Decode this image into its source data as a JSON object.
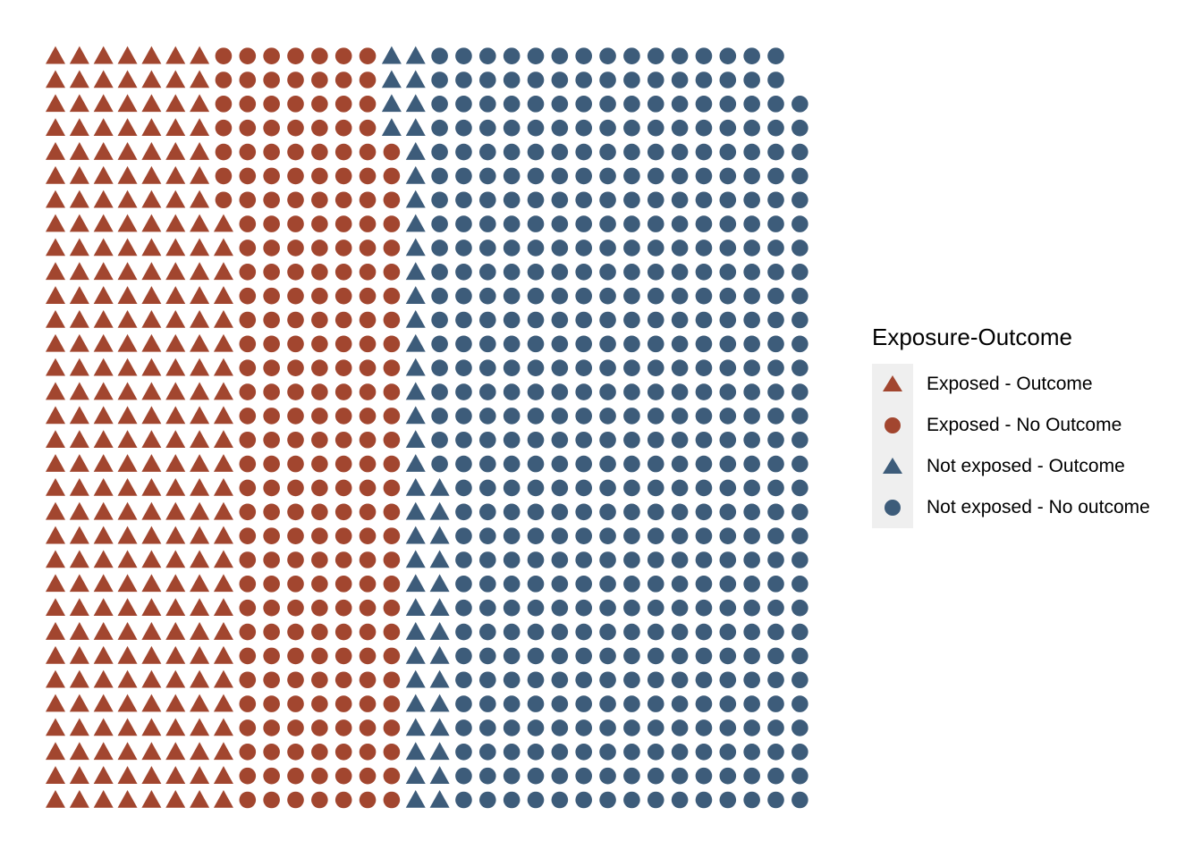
{
  "chart_data": {
    "type": "waffle",
    "grid": {
      "columns": 32,
      "rows": 32,
      "fill_order": "column-major-bottom-up"
    },
    "categories": [
      {
        "label": "Exposed - Outcome",
        "count": 249,
        "shape": "triangle",
        "color": "#A2462F"
      },
      {
        "label": "Exposed - No Outcome",
        "count": 227,
        "shape": "circle",
        "color": "#A2462F"
      },
      {
        "label": "Not exposed - Outcome",
        "count": 50,
        "shape": "triangle",
        "color": "#3D5C7A"
      },
      {
        "label": "Not exposed - No outcome",
        "count": 496,
        "shape": "circle",
        "color": "#3D5C7A"
      }
    ],
    "legend": {
      "title": "Exposure-Outcome",
      "position": "right"
    },
    "xlabel": "",
    "ylabel": "",
    "axes": false,
    "grid_lines": false
  }
}
